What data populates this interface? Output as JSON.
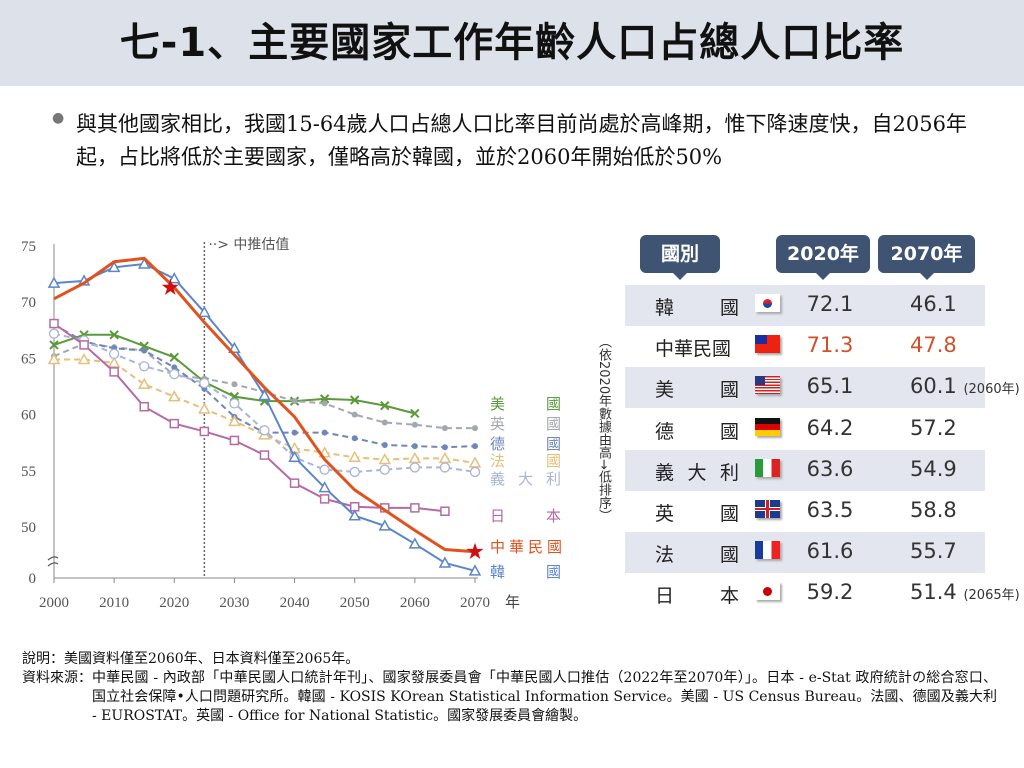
{
  "title": "七-1、主要國家工作年齡人口占總人口比率",
  "summary": "與其他國家相比，我國15-64歲人口占總人口比率目前尚處於高峰期，惟下降速度快，自2056年起，占比將低於主要國家，僅略高於韓國，並於2060年開始低於50%",
  "chart_data": {
    "type": "line",
    "x": [
      2000,
      2005,
      2010,
      2015,
      2020,
      2025,
      2030,
      2035,
      2040,
      2045,
      2050,
      2055,
      2060,
      2065,
      2070
    ],
    "xticks": [
      "2000",
      "2010",
      "2020",
      "2030",
      "2040",
      "2050",
      "2060",
      "2070"
    ],
    "xunit": "年",
    "yticks": [
      "75",
      "70",
      "65",
      "60",
      "55",
      "50",
      "0"
    ],
    "ylim": [
      45,
      75
    ],
    "axis_break": "between 0 and 50",
    "projection_label": "中推估值",
    "projection_start": 2025,
    "series": [
      {
        "name": "美國",
        "label": [
          "美",
          "國"
        ],
        "color": "#5a9a3a",
        "style": "solid",
        "marker": "x",
        "values": [
          66.2,
          67.1,
          67.1,
          66.1,
          65.1,
          62.9,
          61.6,
          61.2,
          61.2,
          61.4,
          61.3,
          60.8,
          60.1,
          null,
          null
        ]
      },
      {
        "name": "英國",
        "label": [
          "英",
          "國"
        ],
        "color": "#a3a7b0",
        "style": "dashed",
        "marker": "dot",
        "values": [
          65.2,
          66.3,
          66.0,
          65.7,
          63.5,
          63.2,
          62.7,
          62.0,
          61.2,
          61.0,
          60.0,
          59.3,
          59.1,
          58.8,
          58.8
        ]
      },
      {
        "name": "德國",
        "label": [
          "德",
          "國"
        ],
        "color": "#6f87b8",
        "style": "dashed",
        "marker": "dot",
        "values": [
          68.0,
          66.5,
          65.9,
          65.7,
          64.2,
          62.3,
          59.8,
          58.4,
          58.4,
          58.4,
          57.9,
          57.3,
          57.2,
          57.1,
          57.2
        ]
      },
      {
        "name": "法國",
        "label": [
          "法",
          "國"
        ],
        "color": "#e6c07a",
        "style": "dashed",
        "marker": "triangle",
        "values": [
          64.9,
          64.9,
          64.6,
          62.7,
          61.6,
          60.5,
          59.4,
          58.2,
          57.0,
          56.6,
          56.2,
          56.0,
          56.1,
          56.1,
          55.7
        ]
      },
      {
        "name": "義大利",
        "label": [
          "義",
          "大",
          "利"
        ],
        "color": "#aab4d8",
        "style": "dashed",
        "marker": "circle",
        "values": [
          67.2,
          66.6,
          65.4,
          64.3,
          63.6,
          62.8,
          61.0,
          58.6,
          56.2,
          55.1,
          54.9,
          55.1,
          55.3,
          55.3,
          54.9
        ]
      },
      {
        "name": "日本",
        "label": [
          "日",
          "本"
        ],
        "color": "#b56aa6",
        "style": "solid",
        "marker": "square",
        "values": [
          68.1,
          66.2,
          63.8,
          60.7,
          59.2,
          58.5,
          57.7,
          56.4,
          53.9,
          52.5,
          51.8,
          51.7,
          51.7,
          51.4,
          null
        ]
      },
      {
        "name": "中華民國",
        "label": [
          "中華民國"
        ],
        "color": "#e0531e",
        "style": "solid-thick",
        "marker": "star",
        "values": [
          70.3,
          71.7,
          73.6,
          73.9,
          71.3,
          68.2,
          65.3,
          62.4,
          59.8,
          56.0,
          53.3,
          51.5,
          49.7,
          48.0,
          47.8
        ]
      },
      {
        "name": "韓國",
        "label": [
          "韓",
          "國"
        ],
        "color": "#5b86c9",
        "style": "solid",
        "marker": "triangle",
        "values": [
          71.7,
          71.9,
          73.1,
          73.4,
          72.1,
          69.1,
          65.9,
          61.7,
          56.2,
          53.5,
          51.0,
          50.1,
          48.5,
          46.8,
          46.1
        ]
      }
    ]
  },
  "sort_note": "（依2020年數據由高→低排序）",
  "table": {
    "headers": [
      "國別",
      "2020年",
      "2070年"
    ],
    "rows": [
      {
        "country": [
          "韓",
          "國"
        ],
        "flag": "korea-flag",
        "v2020": "72.1",
        "v2070": "46.1",
        "note": ""
      },
      {
        "country": [
          "中華民國"
        ],
        "flag": "taiwan-flag",
        "v2020": "71.3",
        "v2070": "47.8",
        "note": "",
        "highlight": "#d0502a"
      },
      {
        "country": [
          "美",
          "國"
        ],
        "flag": "usa-flag",
        "v2020": "65.1",
        "v2070": "60.1",
        "note": "(2060年)"
      },
      {
        "country": [
          "德",
          "國"
        ],
        "flag": "germany-flag",
        "v2020": "64.2",
        "v2070": "57.2",
        "note": ""
      },
      {
        "country": [
          "義",
          "大",
          "利"
        ],
        "flag": "italy-flag",
        "v2020": "63.6",
        "v2070": "54.9",
        "note": ""
      },
      {
        "country": [
          "英",
          "國"
        ],
        "flag": "uk-flag",
        "v2020": "63.5",
        "v2070": "58.8",
        "note": ""
      },
      {
        "country": [
          "法",
          "國"
        ],
        "flag": "france-flag",
        "v2020": "61.6",
        "v2070": "55.7",
        "note": ""
      },
      {
        "country": [
          "日",
          "本"
        ],
        "flag": "japan-flag",
        "v2020": "59.2",
        "v2070": "51.4",
        "note": "(2065年)"
      }
    ]
  },
  "footnote": {
    "note": "說明：美國資料僅至2060年、日本資料僅至2065年。",
    "source_label": "資料來源：",
    "source": "中華民國 - 內政部「中華民國人口統計年刊」、國家發展委員會「中華民國人口推估（2022年至2070年）」。日本 - e-Stat 政府統計の総合窓口、国立社会保障•人口問題研究所。韓國 - KOSIS KOrean Statistical Information Service。美國 - US Census Bureau。法國、德國及義大利 - EUROSTAT。英國 - Office for National Statistic。國家發展委員會繪製。"
  }
}
